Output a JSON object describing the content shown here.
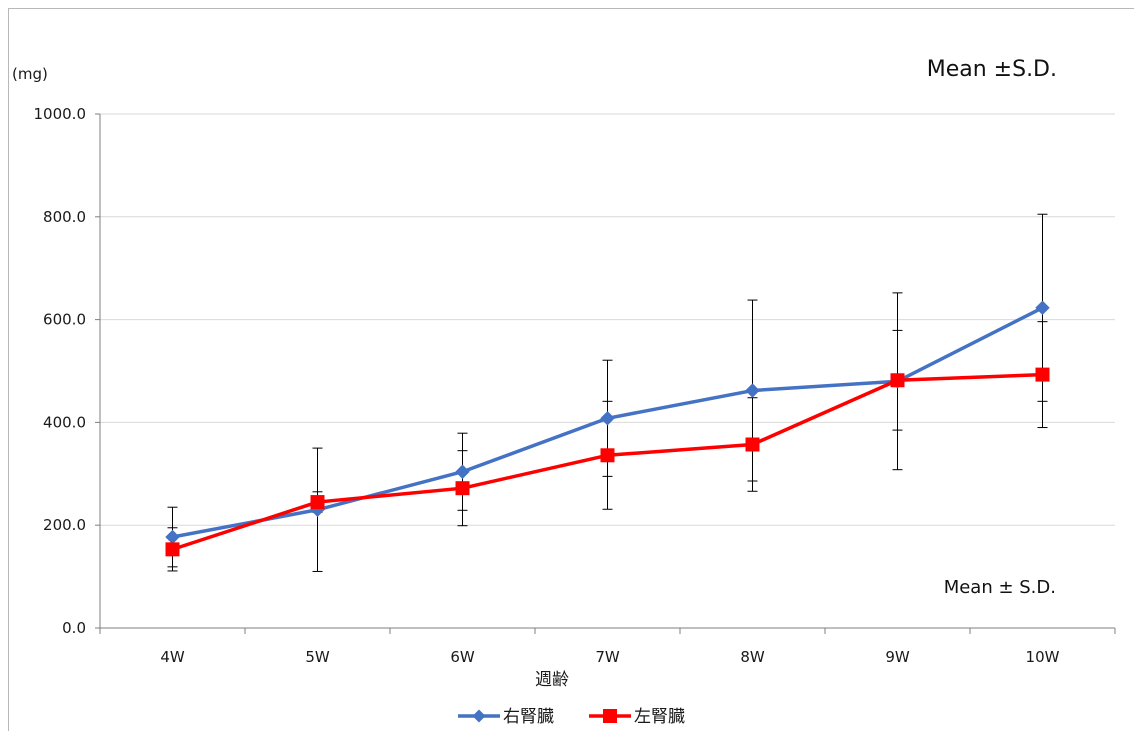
{
  "chart_data": {
    "type": "line",
    "title": "",
    "unit_label": "(mg)",
    "note_top": "Mean ±S.D.",
    "note_bottom": "Mean ± S.D.",
    "xlabel": "週齢",
    "ylabel": "",
    "categories": [
      "4W",
      "5W",
      "6W",
      "7W",
      "8W",
      "9W",
      "10W"
    ],
    "yticks": [
      "0.0",
      "200.0",
      "400.0",
      "600.0",
      "800.0",
      "1000.0"
    ],
    "ylim": [
      0,
      1000
    ],
    "grid": true,
    "legend_position": "bottom",
    "series": [
      {
        "name": "右腎臓",
        "color": "#4472C4",
        "marker": "diamond",
        "values": [
          177,
          230,
          304,
          408,
          462,
          480,
          623
        ],
        "sd": [
          58,
          120,
          75,
          113,
          176,
          172,
          182
        ]
      },
      {
        "name": "左腎臓",
        "color": "#FF0000",
        "marker": "square",
        "values": [
          153,
          245,
          272,
          336,
          357,
          482,
          493
        ],
        "sd": [
          42,
          20,
          73,
          105,
          91,
          97,
          103
        ]
      }
    ]
  }
}
